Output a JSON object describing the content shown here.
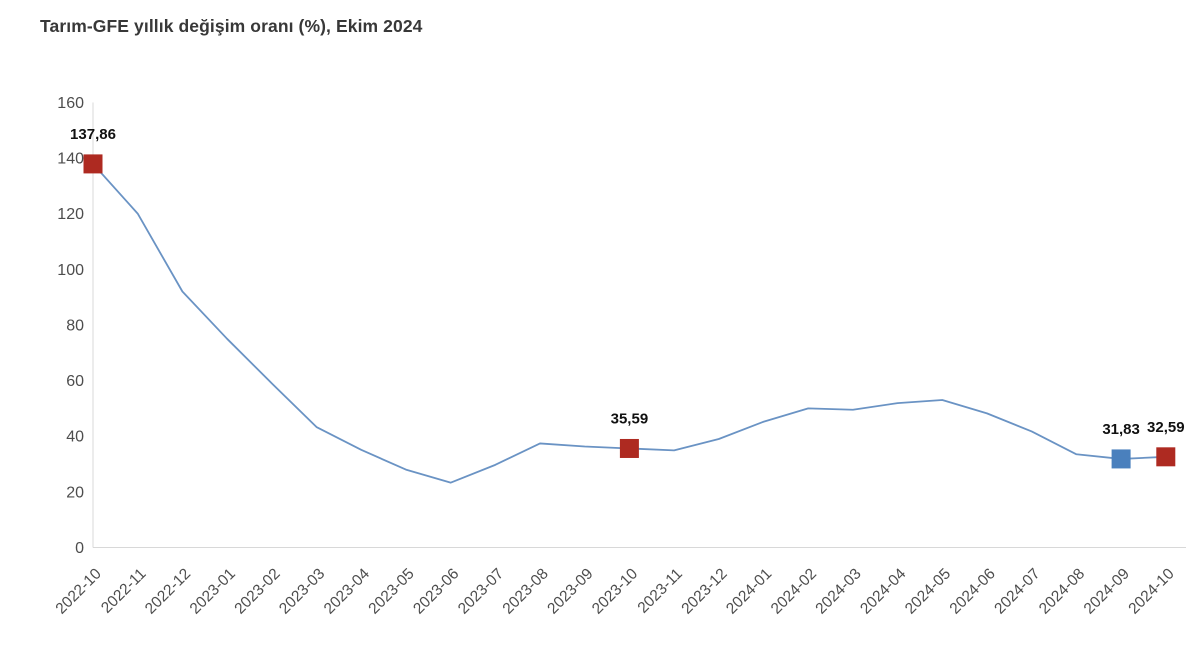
{
  "header": {
    "title": "Tarım-GFE yıllık değişim oranı (%), Ekim 2024"
  },
  "chart_data": {
    "type": "line",
    "title": "Tarım-GFE yıllık değişim oranı (%), Ekim 2024",
    "categories": [
      "2022-10",
      "2022-11",
      "2022-12",
      "2023-01",
      "2023-02",
      "2023-03",
      "2023-04",
      "2023-05",
      "2023-06",
      "2023-07",
      "2023-08",
      "2023-09",
      "2023-10",
      "2023-11",
      "2023-12",
      "2024-01",
      "2024-02",
      "2024-03",
      "2024-04",
      "2024-05",
      "2024-06",
      "2024-07",
      "2024-08",
      "2024-09",
      "2024-10"
    ],
    "values": [
      137.86,
      120,
      92,
      75,
      59,
      43.3,
      35.1,
      28,
      23.3,
      29.7,
      37.4,
      36.3,
      35.59,
      34.9,
      39,
      45.2,
      50,
      49.5,
      51.9,
      53,
      48.2,
      41.7,
      33.5,
      31.83,
      32.59
    ],
    "ylim": [
      0,
      160
    ],
    "ytick_step": 20,
    "yticks": [
      "0",
      "20",
      "40",
      "60",
      "80",
      "100",
      "120",
      "140",
      "160"
    ],
    "grid": false,
    "legend": "none",
    "xlabel": "",
    "ylabel": "",
    "line_color": "#6a93c4",
    "axis_color": "#d8d8d8",
    "tick_label_color": "#4d4d4d",
    "data_label_color": "#111111",
    "highlights": [
      {
        "index": 0,
        "label": "137,86",
        "color": "#ae2a21"
      },
      {
        "index": 12,
        "label": "35,59",
        "color": "#ae2a21"
      },
      {
        "index": 23,
        "label": "31,83",
        "color": "#4a80bd"
      },
      {
        "index": 24,
        "label": "32,59",
        "color": "#ae2a21"
      }
    ]
  }
}
